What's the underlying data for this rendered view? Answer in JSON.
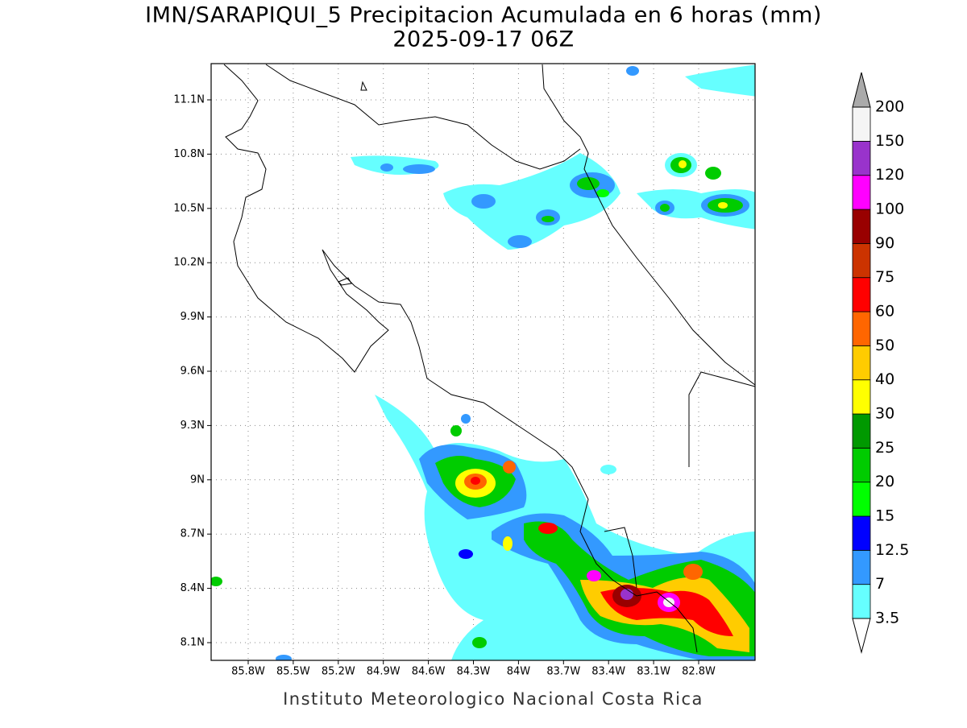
{
  "title": "IMN/SARAPIQUI_5 Precipitacion Acumulada en 6 horas (mm)",
  "subtitle": "2025-09-17 06Z",
  "map": {
    "lat_labels": [
      "11.1N",
      "10.8N",
      "10.5N",
      "10.2N",
      "9.9N",
      "9.6N",
      "9.3N",
      "9N",
      "8.7N",
      "8.4N",
      "8.1N"
    ],
    "lon_labels": [
      "85.8W",
      "85.5W",
      "85.2W",
      "84.9W",
      "84.6W",
      "84.3W",
      "84W",
      "83.7W",
      "83.4W",
      "83.1W",
      "82.8W"
    ]
  },
  "colorbar": {
    "levels": [
      3.5,
      7,
      12.5,
      15,
      20,
      25,
      30,
      40,
      50,
      60,
      75,
      90,
      100,
      120,
      150,
      200
    ],
    "colors": [
      "#66ffff",
      "#3399ff",
      "#0000ff",
      "#00ff00",
      "#00cc00",
      "#009900",
      "#ffff00",
      "#ffcc00",
      "#ff6600",
      "#ff0000",
      "#cc3300",
      "#990000",
      "#ff00ff",
      "#9933cc",
      "#f5f5f5"
    ],
    "under_color": "#ffffff",
    "over_color": "#aaaaaa"
  },
  "footer": "Instituto Meteorologico Nacional Costa Rica"
}
